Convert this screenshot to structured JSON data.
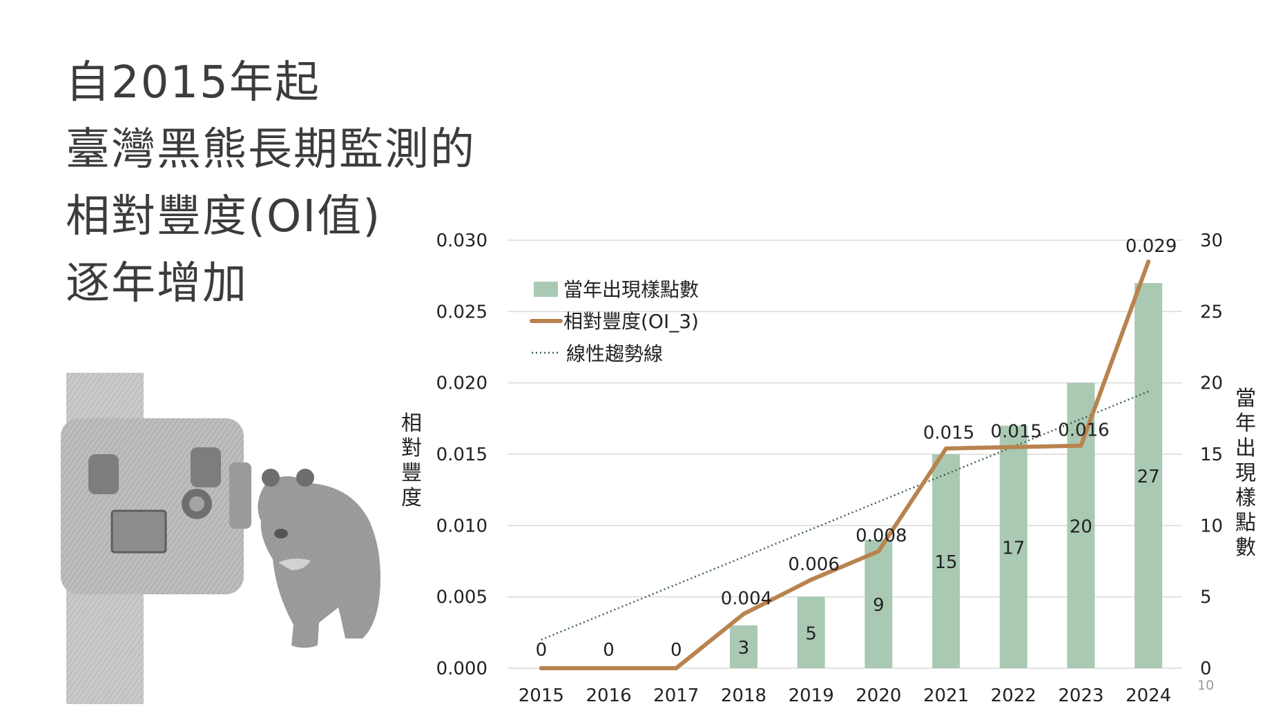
{
  "title": {
    "lines": [
      "自2015年起",
      "臺灣黑熊長期監測的",
      "相對豐度(OI值)",
      "逐年增加"
    ]
  },
  "page_number": "10",
  "colors": {
    "bar": "#a9c9b3",
    "line": "#b9834e",
    "trend": "#3d5e4c",
    "grid": "#d9d9d9",
    "title": "#3c3c3c"
  },
  "illustration": {
    "camera_icon": "camera-trap-sketch",
    "bear_icon": "bear-sketch"
  },
  "chart_data": {
    "type": "bar+line",
    "categories": [
      "2015",
      "2016",
      "2017",
      "2018",
      "2019",
      "2020",
      "2021",
      "2022",
      "2023",
      "2024"
    ],
    "series": [
      {
        "name": "當年出現樣點數",
        "type": "bar",
        "axis": "right",
        "values": [
          0,
          0,
          0,
          3,
          5,
          9,
          15,
          17,
          20,
          27
        ],
        "labels": [
          "0",
          "0",
          "0",
          "3",
          "5",
          "9",
          "15",
          "17",
          "20",
          "27"
        ]
      },
      {
        "name": "相對豐度(OI_3)",
        "type": "line",
        "axis": "left",
        "values": [
          0,
          0,
          0,
          0.0038,
          0.0062,
          0.0082,
          0.0154,
          0.0155,
          0.0156,
          0.0285
        ],
        "labels": [
          "",
          "",
          "",
          "0.004",
          "0.006",
          "0.008",
          "0.015",
          "0.015",
          "0.016",
          "0.029"
        ]
      },
      {
        "name": "線性趨勢線",
        "type": "trend",
        "axis": "left",
        "start": 0.002,
        "end": 0.0194
      }
    ],
    "left_axis": {
      "label": "相對豐度",
      "ylim": [
        0,
        0.03
      ],
      "ticks": [
        "0.000",
        "0.005",
        "0.010",
        "0.015",
        "0.020",
        "0.025",
        "0.030"
      ]
    },
    "right_axis": {
      "label": "當年出現樣點數",
      "ylim": [
        0,
        30
      ],
      "ticks": [
        "0",
        "5",
        "10",
        "15",
        "20",
        "25",
        "30"
      ]
    },
    "legend": {
      "position": "top-left",
      "entries": [
        "當年出現樣點數",
        "相對豐度(OI_3)",
        "線性趨勢線"
      ]
    },
    "grid": true
  }
}
